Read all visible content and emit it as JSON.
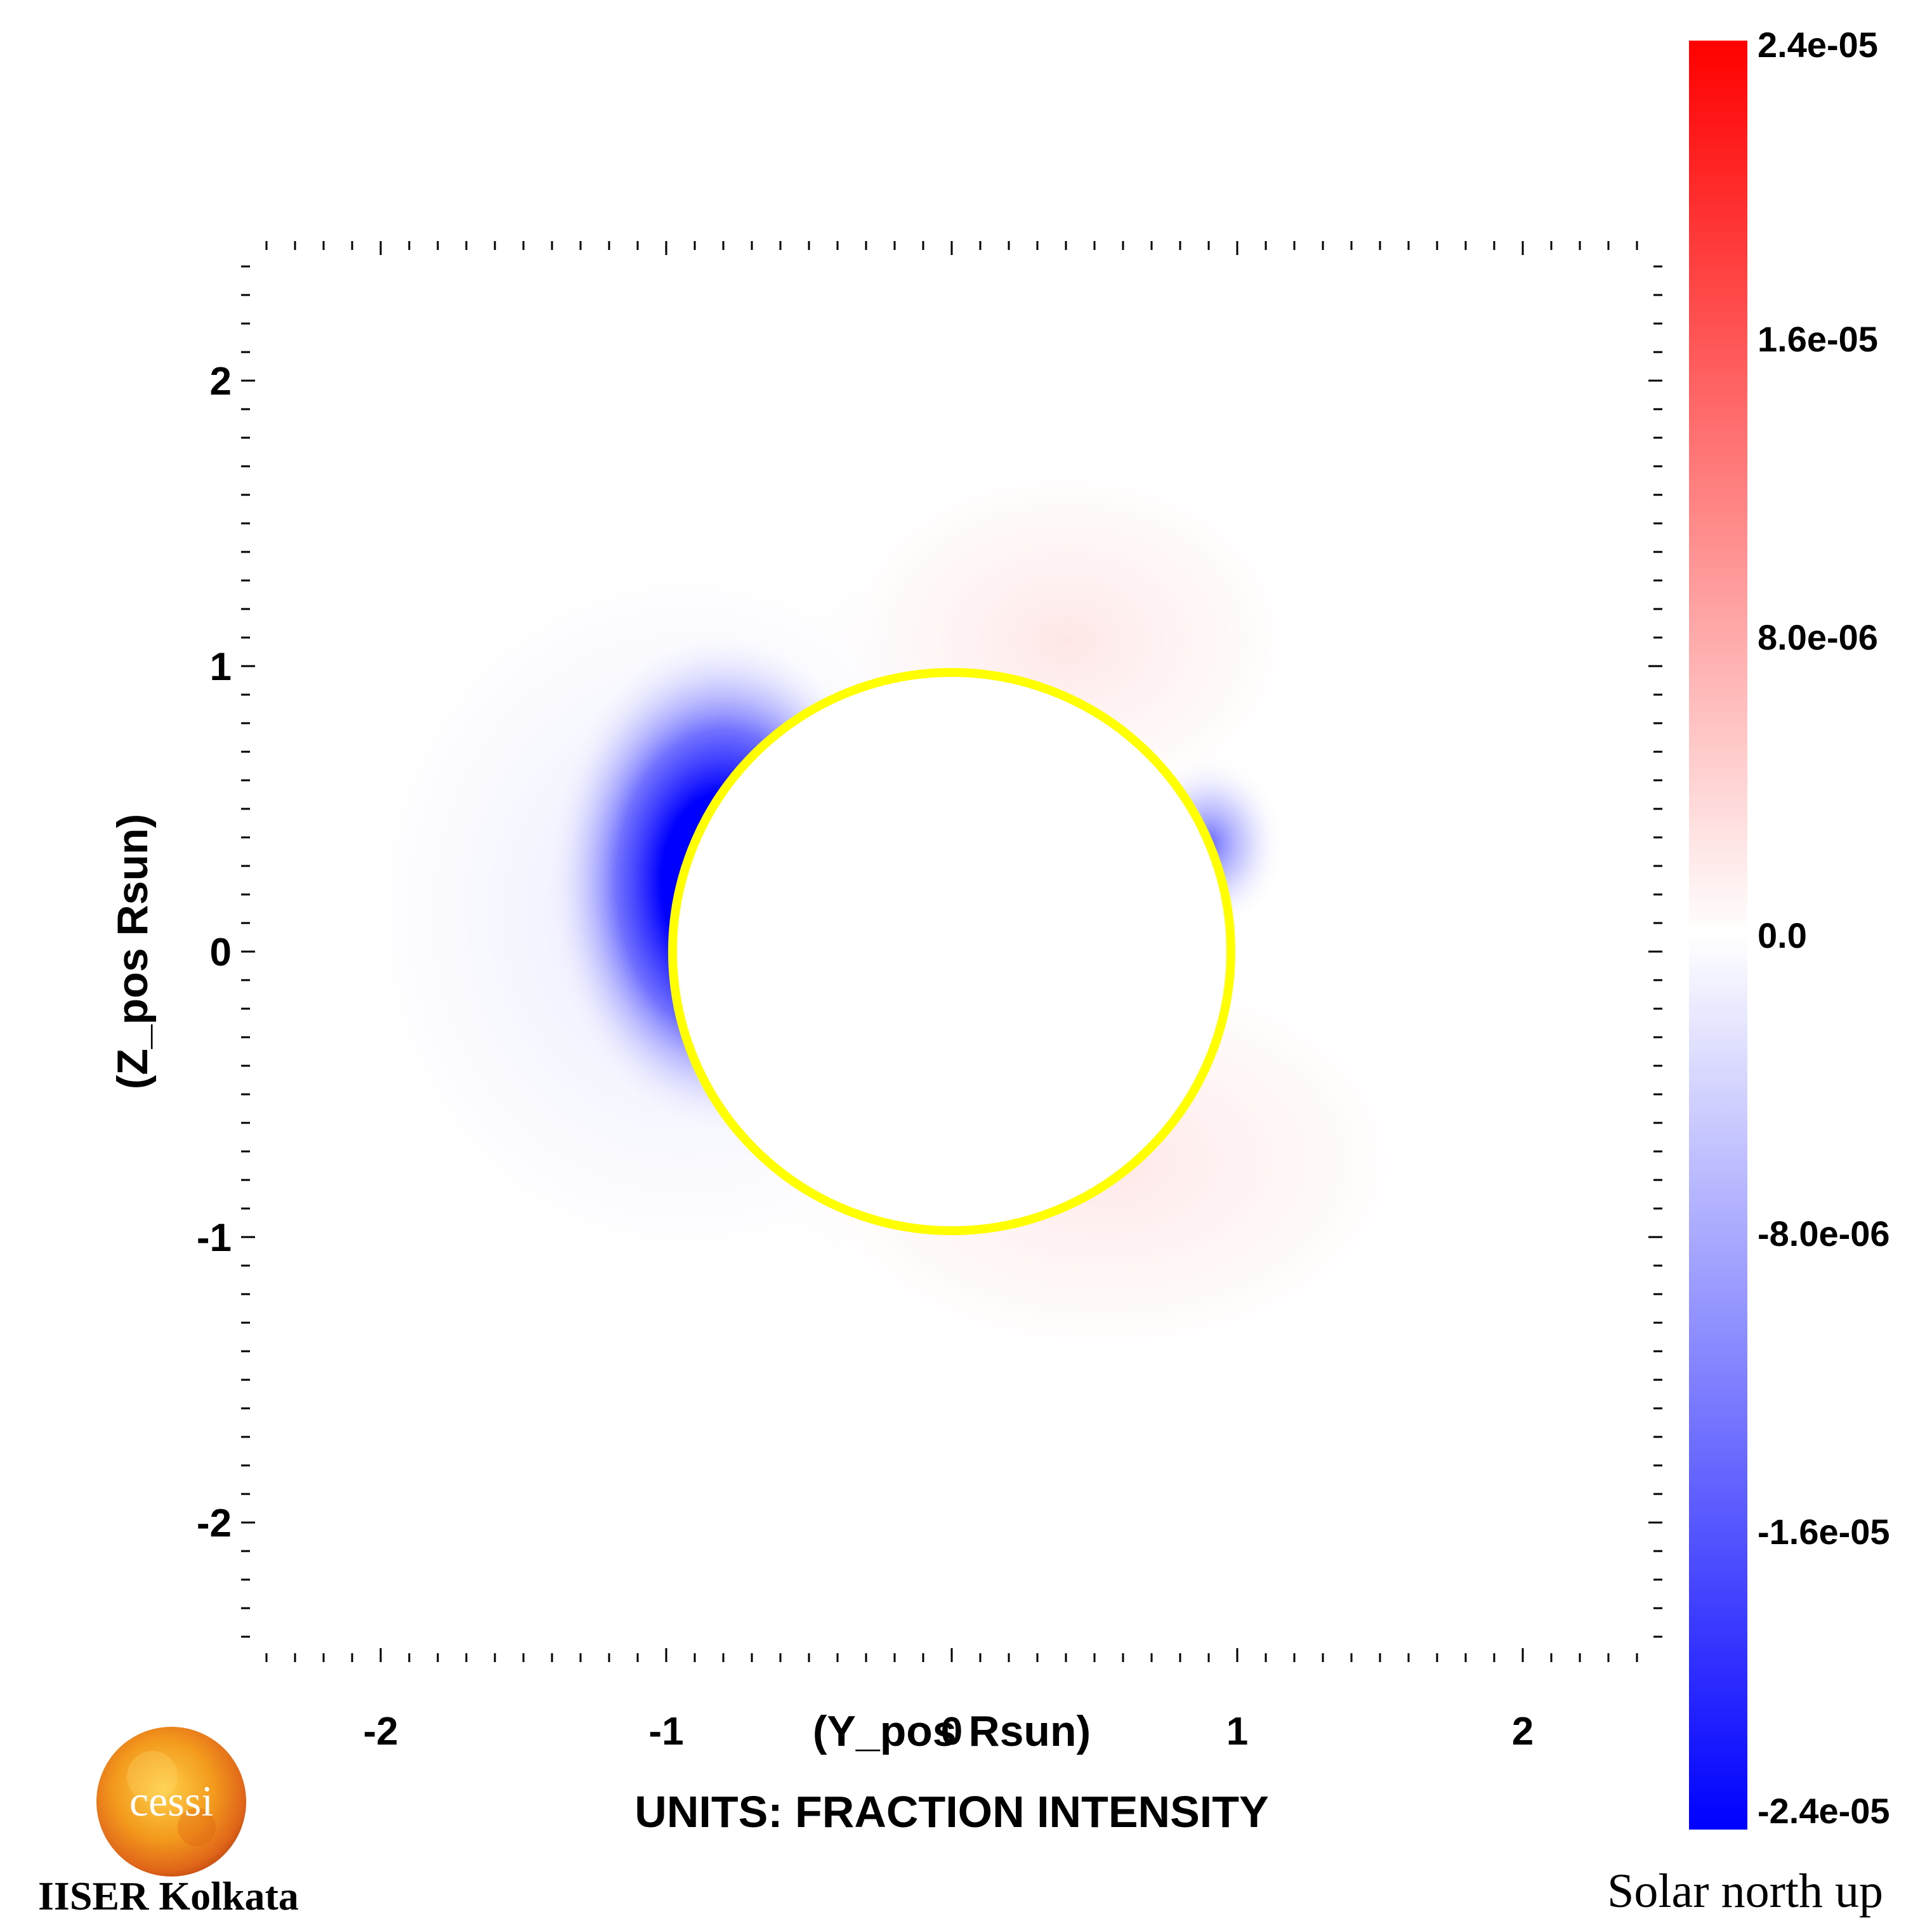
{
  "chart_data": {
    "type": "heatmap",
    "title": "",
    "xlabel": "(Y_pos Rsun)",
    "ylabel": "(Z_pos Rsun)",
    "xlim": [
      -2.4,
      2.4
    ],
    "ylim": [
      -2.4,
      2.4
    ],
    "x_ticks": [
      {
        "value": -2,
        "label": "-2"
      },
      {
        "value": -1,
        "label": "-1"
      },
      {
        "value": 0,
        "label": "0"
      },
      {
        "value": 1,
        "label": "1"
      },
      {
        "value": 2,
        "label": "2"
      }
    ],
    "y_ticks": [
      {
        "value": 2,
        "label": "2"
      },
      {
        "value": 1,
        "label": "1"
      },
      {
        "value": 0,
        "label": "0"
      },
      {
        "value": -1,
        "label": "-1"
      },
      {
        "value": -2,
        "label": "-2"
      }
    ],
    "grid": false,
    "occulting_disk": {
      "center": [
        0,
        0
      ],
      "radius": 1.0,
      "color": "#ffff00"
    },
    "features": [
      {
        "sign": "negative",
        "center": [
          -0.85,
          0.2
        ],
        "peak": -2.4e-05,
        "description_color": "#0000ff"
      },
      {
        "sign": "negative",
        "center": [
          1.0,
          0.35
        ],
        "peak": -6e-06,
        "description_color": "#5a5aff"
      },
      {
        "sign": "positive",
        "center": [
          0.3,
          1.2
        ],
        "peak": 1e-06,
        "description_color": "#ffe6e6"
      },
      {
        "sign": "positive",
        "center": [
          0.3,
          -1.2
        ],
        "peak": 1e-06,
        "description_color": "#ffe6e6"
      }
    ],
    "colorbar": {
      "min": -2.4e-05,
      "max": 2.4e-05,
      "colors": [
        "#0000ff",
        "#ffffff",
        "#ff0000"
      ],
      "ticks": [
        {
          "value": 2.4e-05,
          "label": "2.4e-05"
        },
        {
          "value": 1.6e-05,
          "label": "1.6e-05"
        },
        {
          "value": 8e-06,
          "label": "8.0e-06"
        },
        {
          "value": 0.0,
          "label": "0.0"
        },
        {
          "value": -8e-06,
          "label": "-8.0e-06"
        },
        {
          "value": -1.6e-05,
          "label": "-1.6e-05"
        },
        {
          "value": -2.4e-05,
          "label": "-2.4e-05"
        }
      ]
    },
    "units_label": "UNITS: FRACTION INTENSITY"
  },
  "logo": {
    "text": "cessi",
    "caption": "IISER Kolkata"
  },
  "orientation_note": "Solar north up"
}
